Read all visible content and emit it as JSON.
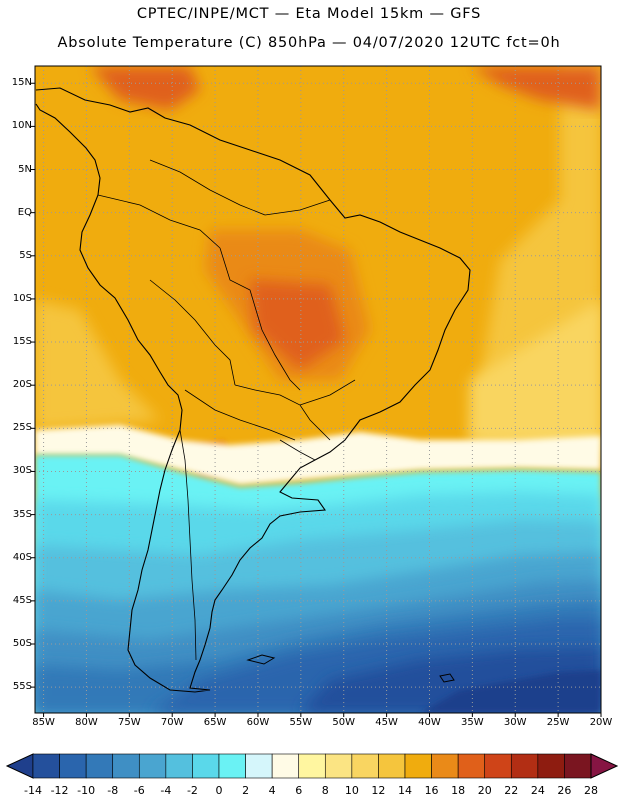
{
  "title": {
    "line1": "CPTEC/INPE/MCT —  Eta Model 15km — GFS",
    "line2": "Absolute Temperature (C) 850hPa — 04/07/2020 12UTC fct=0h"
  },
  "map": {
    "lat_labels": [
      "15N",
      "10N",
      "5N",
      "EQ",
      "5S",
      "10S",
      "15S",
      "20S",
      "25S",
      "30S",
      "35S",
      "40S",
      "45S",
      "50S",
      "55S"
    ],
    "lon_labels": [
      "85W",
      "80W",
      "75W",
      "70W",
      "65W",
      "60W",
      "55W",
      "50W",
      "45W",
      "40W",
      "35W",
      "30W",
      "25W",
      "20W"
    ],
    "lat_range": [
      17,
      -58
    ],
    "lon_range": [
      -86,
      -20
    ]
  },
  "colorbar": {
    "unit": "C",
    "labels": [
      "-14",
      "-12",
      "-10",
      "-8",
      "-6",
      "-4",
      "-2",
      "0",
      "2",
      "4",
      "6",
      "8",
      "10",
      "12",
      "14",
      "16",
      "18",
      "20",
      "22",
      "24",
      "26",
      "28"
    ],
    "colors": [
      "#1f3f8c",
      "#24509c",
      "#2a65ad",
      "#3379b8",
      "#3f8fc4",
      "#4aa5d0",
      "#54c0de",
      "#5ad8ea",
      "#6af2f4",
      "#d5f6fb",
      "#fffbe6",
      "#fff6a0",
      "#fbe483",
      "#f9d561",
      "#f5c53d",
      "#f0ac0e",
      "#ea8a18",
      "#e0601a",
      "#cf4418",
      "#b22e14",
      "#8e1c10",
      "#7a1520",
      "#861543"
    ]
  }
}
